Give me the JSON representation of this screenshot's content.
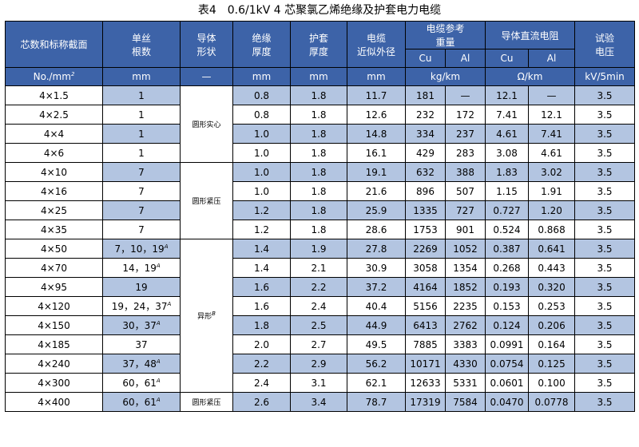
{
  "title": "表4　0.6/1kV 4 芯聚氯乙烯绝缘及护套电力电缆",
  "headers": {
    "size": "芯数和标称截面",
    "wires_1": "单丝",
    "wires_2": "根数",
    "shape_1": "导体",
    "shape_2": "形状",
    "ins_1": "绝缘",
    "ins_2": "厚度",
    "sheath_1": "护套",
    "sheath_2": "厚度",
    "od_1": "电缆",
    "od_2": "近似外径",
    "weight_1": "电缆参考",
    "weight_2": "重量",
    "res": "导体直流电阻",
    "test_1": "试验",
    "test_2": "电压",
    "cu": "Cu",
    "al": "Al",
    "cu2": "Cu",
    "al2": "Al"
  },
  "units": {
    "size_prefix": "No./mm",
    "size_sup": "2",
    "wires": "mm",
    "shape": "—",
    "ins": "mm",
    "sheath": "mm",
    "od": "mm",
    "weight": "kg/km",
    "res": "Ω/km",
    "test": "kV/5min"
  },
  "shape_groups": {
    "g1": "圆形实心",
    "g2": "圆形紧压",
    "g3": "异形",
    "g3_sup": "B",
    "g4": "圆形紧压"
  },
  "rows": [
    {
      "size": "4×1.5",
      "wires": "1",
      "wires_sup": "",
      "ins": "0.8",
      "sheath": "1.8",
      "od": "11.7",
      "cu_w": "181",
      "al_w": "—",
      "cu_r": "12.1",
      "al_r": "—",
      "test": "3.5"
    },
    {
      "size": "4×2.5",
      "wires": "1",
      "wires_sup": "",
      "ins": "0.8",
      "sheath": "1.8",
      "od": "12.6",
      "cu_w": "232",
      "al_w": "172",
      "cu_r": "7.41",
      "al_r": "12.1",
      "test": "3.5"
    },
    {
      "size": "4×4",
      "wires": "1",
      "wires_sup": "",
      "ins": "1.0",
      "sheath": "1.8",
      "od": "14.8",
      "cu_w": "334",
      "al_w": "237",
      "cu_r": "4.61",
      "al_r": "7.41",
      "test": "3.5"
    },
    {
      "size": "4×6",
      "wires": "1",
      "wires_sup": "",
      "ins": "1.0",
      "sheath": "1.8",
      "od": "16.1",
      "cu_w": "429",
      "al_w": "283",
      "cu_r": "3.08",
      "al_r": "4.61",
      "test": "3.5"
    },
    {
      "size": "4×10",
      "wires": "7",
      "wires_sup": "",
      "ins": "1.0",
      "sheath": "1.8",
      "od": "19.1",
      "cu_w": "632",
      "al_w": "388",
      "cu_r": "1.83",
      "al_r": "3.02",
      "test": "3.5"
    },
    {
      "size": "4×16",
      "wires": "7",
      "wires_sup": "",
      "ins": "1.0",
      "sheath": "1.8",
      "od": "21.6",
      "cu_w": "896",
      "al_w": "507",
      "cu_r": "1.15",
      "al_r": "1.91",
      "test": "3.5"
    },
    {
      "size": "4×25",
      "wires": "7",
      "wires_sup": "",
      "ins": "1.2",
      "sheath": "1.8",
      "od": "25.9",
      "cu_w": "1335",
      "al_w": "727",
      "cu_r": "0.727",
      "al_r": "1.20",
      "test": "3.5"
    },
    {
      "size": "4×35",
      "wires": "7",
      "wires_sup": "",
      "ins": "1.2",
      "sheath": "1.8",
      "od": "28.6",
      "cu_w": "1753",
      "al_w": "901",
      "cu_r": "0.524",
      "al_r": "0.868",
      "test": "3.5"
    },
    {
      "size": "4×50",
      "wires": "7，10，19",
      "wires_sup": "A",
      "ins": "1.4",
      "sheath": "1.9",
      "od": "27.8",
      "cu_w": "2269",
      "al_w": "1052",
      "cu_r": "0.387",
      "al_r": "0.641",
      "test": "3.5"
    },
    {
      "size": "4×70",
      "wires": "14，19",
      "wires_sup": "A",
      "ins": "1.4",
      "sheath": "2.1",
      "od": "30.9",
      "cu_w": "3058",
      "al_w": "1354",
      "cu_r": "0.268",
      "al_r": "0.443",
      "test": "3.5"
    },
    {
      "size": "4×95",
      "wires": "19",
      "wires_sup": "",
      "ins": "1.6",
      "sheath": "2.2",
      "od": "37.2",
      "cu_w": "4164",
      "al_w": "1852",
      "cu_r": "0.193",
      "al_r": "0.320",
      "test": "3.5"
    },
    {
      "size": "4×120",
      "wires": "19，24，37",
      "wires_sup": "A",
      "ins": "1.6",
      "sheath": "2.4",
      "od": "40.4",
      "cu_w": "5156",
      "al_w": "2235",
      "cu_r": "0.153",
      "al_r": "0.253",
      "test": "3.5"
    },
    {
      "size": "4×150",
      "wires": "30，37",
      "wires_sup": "A",
      "ins": "1.8",
      "sheath": "2.5",
      "od": "44.9",
      "cu_w": "6413",
      "al_w": "2762",
      "cu_r": "0.124",
      "al_r": "0.206",
      "test": "3.5"
    },
    {
      "size": "4×185",
      "wires": "37",
      "wires_sup": "",
      "ins": "2.0",
      "sheath": "2.7",
      "od": "49.5",
      "cu_w": "7885",
      "al_w": "3383",
      "cu_r": "0.0991",
      "al_r": "0.164",
      "test": "3.5"
    },
    {
      "size": "4×240",
      "wires": "37，48",
      "wires_sup": "A",
      "ins": "2.2",
      "sheath": "2.9",
      "od": "56.2",
      "cu_w": "10171",
      "al_w": "4330",
      "cu_r": "0.0754",
      "al_r": "0.125",
      "test": "3.5"
    },
    {
      "size": "4×300",
      "wires": "60，61",
      "wires_sup": "A",
      "ins": "2.4",
      "sheath": "3.1",
      "od": "62.1",
      "cu_w": "12633",
      "al_w": "5331",
      "cu_r": "0.0601",
      "al_r": "0.100",
      "test": "3.5"
    },
    {
      "size": "4×400",
      "wires": "60，61",
      "wires_sup": "A",
      "ins": "2.6",
      "sheath": "3.4",
      "od": "78.7",
      "cu_w": "17319",
      "al_w": "7584",
      "cu_r": "0.0470",
      "al_r": "0.0778",
      "test": "3.5"
    }
  ]
}
